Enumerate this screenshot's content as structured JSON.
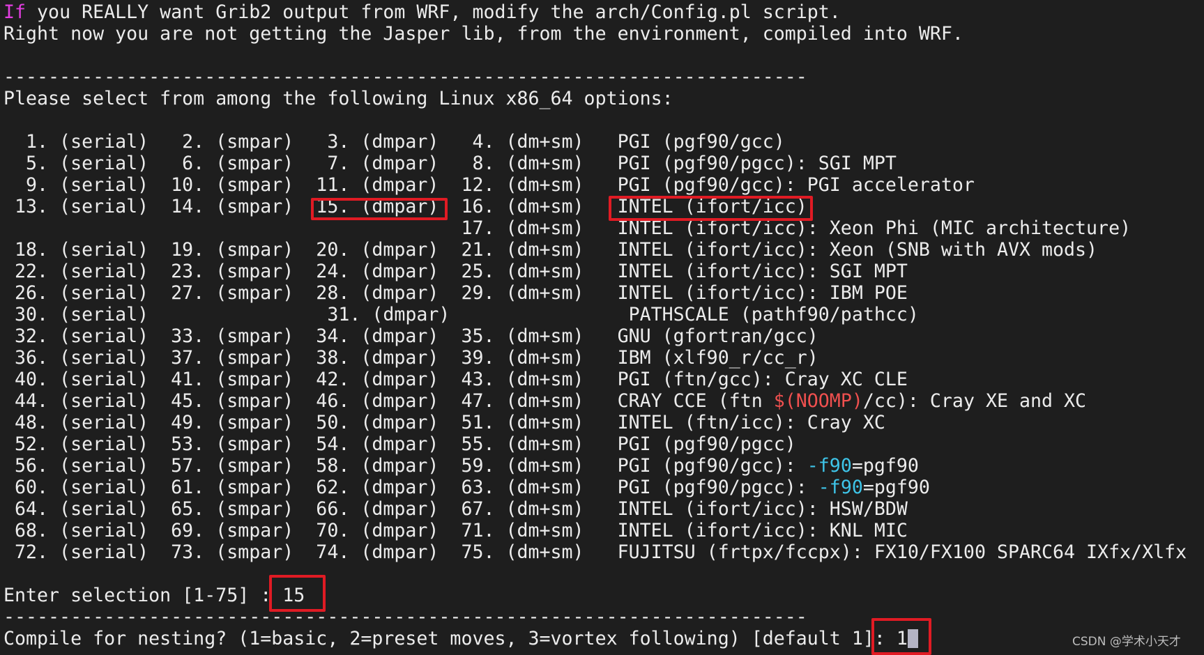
{
  "colors": {
    "text": "#ececec",
    "keyword": "#e23ee0",
    "variable": "#f0504f",
    "flag": "#3ec4e8",
    "highlight_box": "#e01b24",
    "background": "#1e1e1e"
  },
  "terminal": {
    "lines": [
      [
        {
          "t": "If",
          "c": "keyword"
        },
        {
          "t": " you REALLY want Grib2 output from WRF, modify the arch/Config.pl script."
        }
      ],
      [
        {
          "t": "Right now you are not getting the Jasper lib, from the environment, compiled into WRF."
        }
      ],
      [
        {
          "t": ""
        }
      ],
      [
        {
          "t": "------------------------------------------------------------------------"
        }
      ],
      [
        {
          "t": "Please select from among the following Linux x86_64 options:"
        }
      ],
      [
        {
          "t": ""
        }
      ],
      [
        {
          "t": "  1. (serial)   2. (smpar)   3. (dmpar)   4. (dm+sm)   PGI (pgf90/gcc)"
        }
      ],
      [
        {
          "t": "  5. (serial)   6. (smpar)   7. (dmpar)   8. (dm+sm)   PGI (pgf90/pgcc): SGI MPT"
        }
      ],
      [
        {
          "t": "  9. (serial)  10. (smpar)  11. (dmpar)  12. (dm+sm)   PGI (pgf90/gcc): PGI accelerator"
        }
      ],
      [
        {
          "t": " 13. (serial)  14. (smpar)  15. (dmpar)  16. (dm+sm)   INTEL (ifort/icc)"
        }
      ],
      [
        {
          "t": "                                         17. (dm+sm)   INTEL (ifort/icc): Xeon Phi (MIC architecture)"
        }
      ],
      [
        {
          "t": " 18. (serial)  19. (smpar)  20. (dmpar)  21. (dm+sm)   INTEL (ifort/icc): Xeon (SNB with AVX mods)"
        }
      ],
      [
        {
          "t": " 22. (serial)  23. (smpar)  24. (dmpar)  25. (dm+sm)   INTEL (ifort/icc): SGI MPT"
        }
      ],
      [
        {
          "t": " 26. (serial)  27. (smpar)  28. (dmpar)  29. (dm+sm)   INTEL (ifort/icc): IBM POE"
        }
      ],
      [
        {
          "t": " 30. (serial)                31. (dmpar)                PATHSCALE (pathf90/pathcc)"
        }
      ],
      [
        {
          "t": " 32. (serial)  33. (smpar)  34. (dmpar)  35. (dm+sm)   GNU (gfortran/gcc)"
        }
      ],
      [
        {
          "t": " 36. (serial)  37. (smpar)  38. (dmpar)  39. (dm+sm)   IBM (xlf90_r/cc_r)"
        }
      ],
      [
        {
          "t": " 40. (serial)  41. (smpar)  42. (dmpar)  43. (dm+sm)   PGI (ftn/gcc): Cray XC CLE"
        }
      ],
      [
        {
          "t": " 44. (serial)  45. (smpar)  46. (dmpar)  47. (dm+sm)   CRAY CCE (ftn "
        },
        {
          "t": "$(NOOMP)",
          "c": "variable"
        },
        {
          "t": "/cc): Cray XE and XC"
        }
      ],
      [
        {
          "t": " 48. (serial)  49. (smpar)  50. (dmpar)  51. (dm+sm)   INTEL (ftn/icc): Cray XC"
        }
      ],
      [
        {
          "t": " 52. (serial)  53. (smpar)  54. (dmpar)  55. (dm+sm)   PGI (pgf90/pgcc)"
        }
      ],
      [
        {
          "t": " 56. (serial)  57. (smpar)  58. (dmpar)  59. (dm+sm)   PGI (pgf90/gcc): "
        },
        {
          "t": "-f90",
          "c": "flag"
        },
        {
          "t": "=pgf90"
        }
      ],
      [
        {
          "t": " 60. (serial)  61. (smpar)  62. (dmpar)  63. (dm+sm)   PGI (pgf90/pgcc): "
        },
        {
          "t": "-f90",
          "c": "flag"
        },
        {
          "t": "=pgf90"
        }
      ],
      [
        {
          "t": " 64. (serial)  65. (smpar)  66. (dmpar)  67. (dm+sm)   INTEL (ifort/icc): HSW/BDW"
        }
      ],
      [
        {
          "t": " 68. (serial)  69. (smpar)  70. (dmpar)  71. (dm+sm)   INTEL (ifort/icc): KNL MIC"
        }
      ],
      [
        {
          "t": " 72. (serial)  73. (smpar)  74. (dmpar)  75. (dm+sm)   FUJITSU (frtpx/fccpx): FX10/FX100 SPARC64 IXfx/Xlfx"
        }
      ],
      [
        {
          "t": ""
        }
      ],
      [
        {
          "t": "Enter selection [1-75] : 15"
        }
      ],
      [
        {
          "t": "------------------------------------------------------------------------"
        }
      ],
      [
        {
          "t": "Compile for nesting? (1=basic, 2=preset moves, 3=vortex following) [default 1]: 1"
        },
        {
          "cursor": true
        }
      ]
    ]
  },
  "watermark": "CSDN @学术小天才"
}
